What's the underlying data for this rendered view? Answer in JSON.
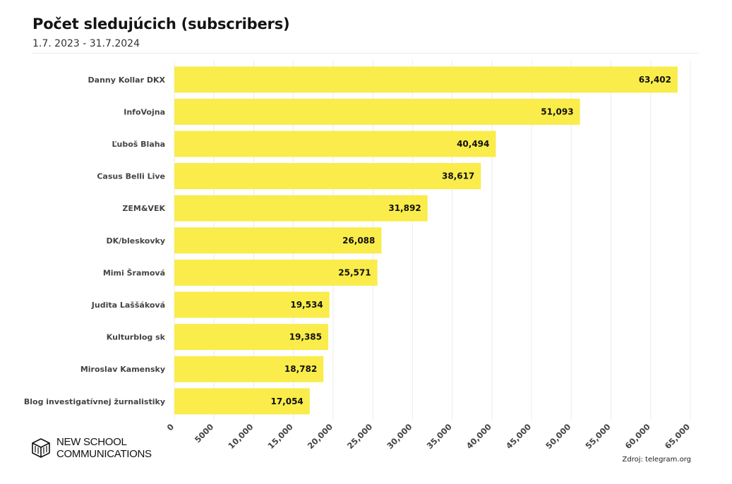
{
  "chart_data": {
    "type": "bar",
    "orientation": "horizontal",
    "title": "Počet sledujúcich (subscribers)",
    "subtitle": "1.7. 2023 - 31.7.2024",
    "categories": [
      "Danny Kollar DKX",
      "InfoVojna",
      "Ľuboš Blaha",
      "Casus Belli Live",
      "ZEM&VEK",
      "DK/bleskovky",
      "Mimi Šramová",
      "Judita Laššáková",
      "Kulturblog sk",
      "Miroslav Kamensky",
      "Blog investigatívnej žurnalistiky"
    ],
    "values": [
      63402,
      51093,
      40494,
      38617,
      31892,
      26088,
      25571,
      19534,
      19385,
      18782,
      17054
    ],
    "value_labels": [
      "63,402",
      "51,093",
      "40,494",
      "38,617",
      "31,892",
      "26,088",
      "25,571",
      "19,534",
      "19,385",
      "18,782",
      "17,054"
    ],
    "xlim": [
      0,
      65000
    ],
    "x_ticks": [
      0,
      5000,
      10000,
      15000,
      20000,
      25000,
      30000,
      35000,
      40000,
      45000,
      50000,
      55000,
      60000,
      65000
    ],
    "x_tick_labels": [
      "0",
      "5000",
      "10,000",
      "15,000",
      "20,000",
      "25,000",
      "30,000",
      "35,000",
      "40,000",
      "45,000",
      "50,000",
      "55,000",
      "60,000",
      "65,000"
    ],
    "grid": true,
    "xlabel": "",
    "ylabel": ""
  },
  "colors": {
    "bar": "#faec4a",
    "grid": "#ececec",
    "label": "#444444",
    "value": "#111111"
  },
  "brand": {
    "line1": "NEW SCHOOL",
    "line2": "COMMUNICATIONS",
    "icon": "cube-logo-icon"
  },
  "source": "Zdroj: telegram.org"
}
